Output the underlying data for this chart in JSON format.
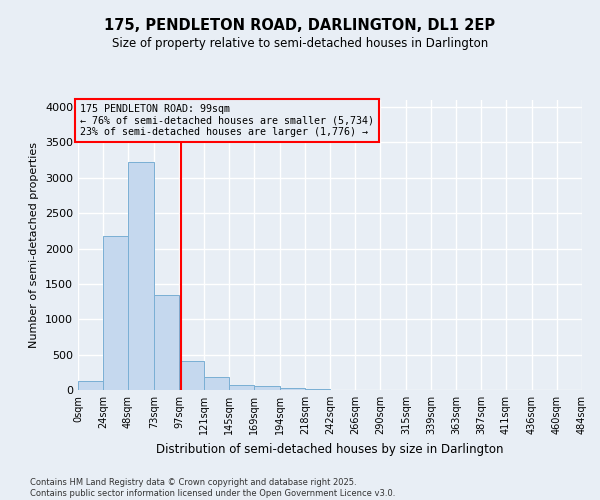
{
  "title": "175, PENDLETON ROAD, DARLINGTON, DL1 2EP",
  "subtitle": "Size of property relative to semi-detached houses in Darlington",
  "xlabel": "Distribution of semi-detached houses by size in Darlington",
  "ylabel": "Number of semi-detached properties",
  "bar_color": "#c5d8ee",
  "bar_edge_color": "#7aafd4",
  "background_color": "#e8eef5",
  "grid_color": "#ffffff",
  "vline_x": 99,
  "vline_color": "red",
  "annotation_title": "175 PENDLETON ROAD: 99sqm",
  "annotation_line1": "← 76% of semi-detached houses are smaller (5,734)",
  "annotation_line2": "23% of semi-detached houses are larger (1,776) →",
  "annotation_box_color": "red",
  "bin_edges": [
    0,
    24,
    48,
    73,
    97,
    121,
    145,
    169,
    194,
    218,
    242,
    266,
    290,
    315,
    339,
    363,
    387,
    411,
    436,
    460,
    484
  ],
  "bin_labels": [
    "0sqm",
    "24sqm",
    "48sqm",
    "73sqm",
    "97sqm",
    "121sqm",
    "145sqm",
    "169sqm",
    "194sqm",
    "218sqm",
    "242sqm",
    "266sqm",
    "290sqm",
    "315sqm",
    "339sqm",
    "363sqm",
    "387sqm",
    "411sqm",
    "436sqm",
    "460sqm",
    "484sqm"
  ],
  "bar_heights": [
    125,
    2175,
    3225,
    1350,
    415,
    185,
    75,
    55,
    30,
    10,
    5,
    2,
    0,
    0,
    0,
    0,
    0,
    0,
    0,
    0
  ],
  "ylim": [
    0,
    4100
  ],
  "yticks": [
    0,
    500,
    1000,
    1500,
    2000,
    2500,
    3000,
    3500,
    4000
  ],
  "footer_line1": "Contains HM Land Registry data © Crown copyright and database right 2025.",
  "footer_line2": "Contains public sector information licensed under the Open Government Licence v3.0."
}
